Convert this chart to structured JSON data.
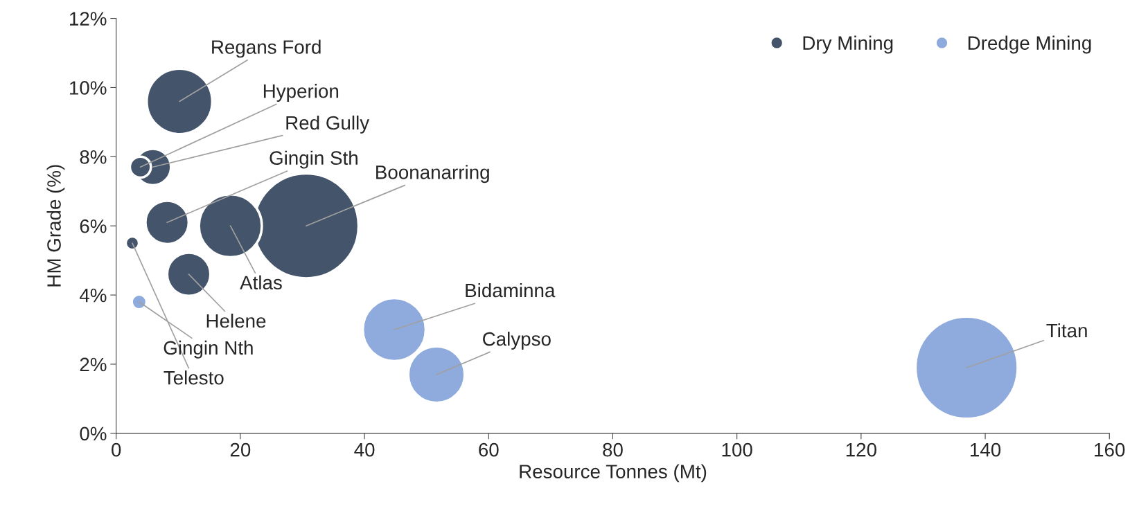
{
  "chart_data": {
    "type": "bubble",
    "xlabel": "Resource Tonnes (Mt)",
    "ylabel": "HM Grade (%)",
    "series": [
      {
        "name": "Dry Mining",
        "color": "#44546a",
        "x": [
          10.2,
          5.9,
          3.9,
          8.2,
          30.6,
          18.4,
          11.7,
          2.6
        ],
        "values": [
          9.6,
          7.7,
          7.7,
          6.1,
          6.0,
          6.0,
          4.6,
          5.5
        ],
        "sizes": [
          0.39,
          0.12,
          0.04,
          0.17,
          1,
          0.36,
          0.17,
          0.016
        ]
      },
      {
        "name": "Dredge Mining",
        "color": "#8faadc",
        "x": [
          3.7,
          44.8,
          51.6,
          137
        ],
        "values": [
          3.8,
          3.0,
          1.7,
          1.9
        ],
        "sizes": [
          0.02,
          0.36,
          0.29,
          0.95
        ]
      }
    ],
    "annotations": [
      {
        "text": "Regans Ford",
        "x": 10.2,
        "y": 9.6
      },
      {
        "text": "Red Gully",
        "x": 5.9,
        "y": 7.7
      },
      {
        "text": "Hyperion",
        "x": 3.9,
        "y": 7.7
      },
      {
        "text": "Gingin Sth",
        "x": 8.2,
        "y": 6.1
      },
      {
        "text": "Boonanarring",
        "x": 30.6,
        "y": 6.0
      },
      {
        "text": "Atlas",
        "x": 18.4,
        "y": 6.0
      },
      {
        "text": "Helene",
        "x": 11.7,
        "y": 4.6
      },
      {
        "text": "Telesto",
        "x": 2.6,
        "y": 5.5
      },
      {
        "text": "Gingin Nth",
        "x": 3.7,
        "y": 3.8
      },
      {
        "text": "Bidaminna",
        "x": 44.8,
        "y": 3.0
      },
      {
        "text": "Calypso",
        "x": 51.6,
        "y": 1.7
      },
      {
        "text": "Titan",
        "x": 137,
        "y": 1.9
      }
    ],
    "xlim": [
      0,
      160
    ],
    "xticks": [
      0,
      20,
      40,
      60,
      80,
      100,
      120,
      140,
      160
    ],
    "ylim": [
      0,
      12
    ],
    "yticks": [
      {
        "value": 0,
        "label": "0%"
      },
      {
        "value": 2,
        "label": "2%"
      },
      {
        "value": 4,
        "label": "4%"
      },
      {
        "value": 6,
        "label": "6%"
      },
      {
        "value": 8,
        "label": "8%"
      },
      {
        "value": 10,
        "label": "10%"
      },
      {
        "value": 12,
        "label": "12%"
      }
    ],
    "grid": false,
    "legend": "top right"
  }
}
